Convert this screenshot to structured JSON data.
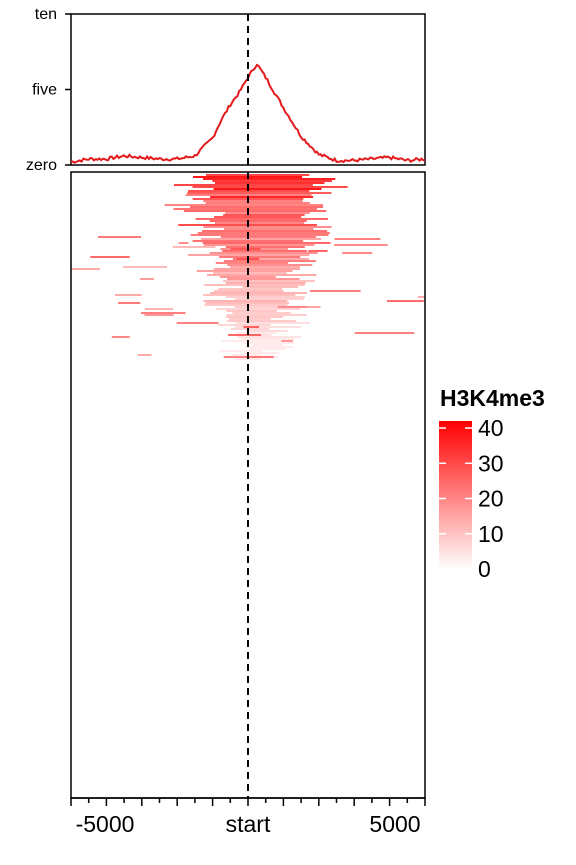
{
  "chart_data": [
    {
      "type": "line",
      "panel": "profile",
      "x": [
        -5000,
        -4500,
        -4000,
        -3500,
        -3000,
        -2500,
        -2000,
        -1500,
        -1000,
        -750,
        -500,
        -250,
        0,
        250,
        500,
        750,
        1000,
        1500,
        2000,
        2500,
        3000,
        3500,
        4000,
        4500,
        5000
      ],
      "values": [
        0.2,
        0.4,
        0.4,
        0.6,
        0.5,
        0.4,
        0.4,
        0.6,
        1.8,
        3.0,
        4.0,
        4.8,
        5.8,
        6.7,
        5.8,
        4.8,
        3.8,
        1.9,
        0.7,
        0.3,
        0.3,
        0.4,
        0.5,
        0.3,
        0.4
      ],
      "line_color": "#e41a1c",
      "ylim": [
        0,
        10
      ],
      "yticks": [
        0,
        5,
        10
      ],
      "ytick_labels": [
        "zero",
        "five",
        "ten"
      ],
      "xlim": [
        -5000,
        5000
      ],
      "vline_at": 0
    },
    {
      "type": "heatmap",
      "panel": "heatmap",
      "xlim": [
        -5000,
        5000
      ],
      "xtick_labels": [
        "-5000",
        "start",
        "5000"
      ],
      "xtick_values": [
        -5000,
        0,
        5000
      ],
      "minor_tick_step": 1000,
      "color_low": "#ffffff",
      "color_high": "#ff0000",
      "vline_at": 0
    }
  ],
  "legend": {
    "title": "H3K4me3",
    "tick_labels": [
      "40",
      "30",
      "20",
      "10",
      "0"
    ],
    "tick_values": [
      40,
      30,
      20,
      10,
      0
    ],
    "range": [
      0,
      42
    ]
  }
}
